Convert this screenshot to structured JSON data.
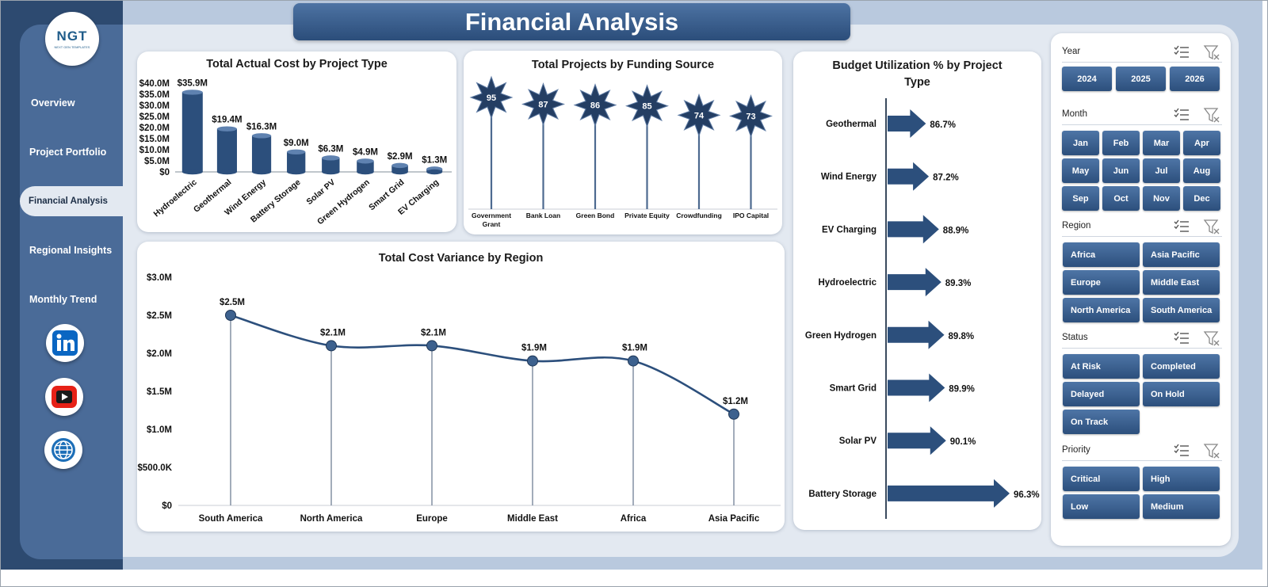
{
  "header": {
    "title": "Financial Analysis"
  },
  "logo": {
    "mark": "NGT",
    "sub": "NEXT GEN TEMPLATES"
  },
  "nav": [
    {
      "label": "Overview"
    },
    {
      "label": "Project Portfolio"
    },
    {
      "label": "Financial  Analysis",
      "active": true
    },
    {
      "label": "Regional Insights"
    },
    {
      "label": "Monthly Trend"
    }
  ],
  "social": [
    {
      "icon": "linkedin-icon"
    },
    {
      "icon": "youtube-icon"
    },
    {
      "icon": "globe-icon"
    }
  ],
  "colors": {
    "navy": "#2d4a70",
    "panel": "#4a6b98",
    "bar": "#2c4f7c",
    "canvas": "#e3e9f1"
  },
  "chart_data": [
    {
      "id": "cost-by-type",
      "type": "bar",
      "title": "Total Actual Cost by Project Type",
      "categories": [
        "Hydroelectric",
        "Geothermal",
        "Wind Energy",
        "Battery Storage",
        "Solar PV",
        "Green Hydrogen",
        "Smart Grid",
        "EV Charging"
      ],
      "values": [
        35.9,
        19.4,
        16.3,
        9.0,
        6.3,
        4.9,
        2.9,
        1.3
      ],
      "data_labels": [
        "$35.9M",
        "$19.4M",
        "$16.3M",
        "$9.0M",
        "$6.3M",
        "$4.9M",
        "$2.9M",
        "$1.3M"
      ],
      "ylim": [
        0,
        40
      ],
      "ytick_labels": [
        "$40.0M",
        "$35.0M",
        "$30.0M",
        "$25.0M",
        "$20.0M",
        "$15.0M",
        "$10.0M",
        "$5.0M",
        "$0"
      ]
    },
    {
      "id": "projects-by-funding",
      "type": "lollipop",
      "title": "Total Projects by Funding Source",
      "categories": [
        "Government Grant",
        "Bank Loan",
        "Green Bond",
        "Private Equity",
        "Crowdfunding",
        "IPO Capital"
      ],
      "values": [
        95,
        87,
        86,
        85,
        74,
        73
      ]
    },
    {
      "id": "variance-by-region",
      "type": "line",
      "title": "Total Cost Variance by Region",
      "categories": [
        "South America",
        "North America",
        "Europe",
        "Middle East",
        "Africa",
        "Asia Pacific"
      ],
      "values": [
        2.5,
        2.1,
        2.1,
        1.9,
        1.9,
        1.2
      ],
      "data_labels": [
        "$2.5M",
        "$2.1M",
        "$2.1M",
        "$1.9M",
        "$1.9M",
        "$1.2M"
      ],
      "ylim": [
        0,
        3
      ],
      "ytick_labels": [
        "$3.0M",
        "$2.5M",
        "$2.0M",
        "$1.5M",
        "$1.0M",
        "$500.0K",
        "$0"
      ]
    },
    {
      "id": "budget-utilization",
      "type": "bar-horizontal",
      "title": "Budget Utilization % by Project Type",
      "categories": [
        "Geothermal",
        "Wind Energy",
        "EV Charging",
        "Hydroelectric",
        "Green Hydrogen",
        "Smart Grid",
        "Solar PV",
        "Battery Storage"
      ],
      "values": [
        86.7,
        87.2,
        88.9,
        89.3,
        89.8,
        89.9,
        90.1,
        96.3
      ],
      "data_labels": [
        "86.7%",
        "87.2%",
        "88.9%",
        "89.3%",
        "89.8%",
        "89.9%",
        "90.1%",
        "96.3%"
      ]
    }
  ],
  "slicers": [
    {
      "label": "Year",
      "items": [
        "2024",
        "2025",
        "2026"
      ]
    },
    {
      "label": "Month",
      "items": [
        "Jan",
        "Feb",
        "Mar",
        "Apr",
        "May",
        "Jun",
        "Jul",
        "Aug",
        "Sep",
        "Oct",
        "Nov",
        "Dec"
      ]
    },
    {
      "label": "Region",
      "items": [
        "Africa",
        "Asia Pacific",
        "Europe",
        "Middle East",
        "North America",
        "South America"
      ]
    },
    {
      "label": "Status",
      "items": [
        "At Risk",
        "Completed",
        "Delayed",
        "On Hold",
        "On Track"
      ]
    },
    {
      "label": "Priority",
      "items": [
        "Critical",
        "High",
        "Low",
        "Medium"
      ]
    }
  ]
}
